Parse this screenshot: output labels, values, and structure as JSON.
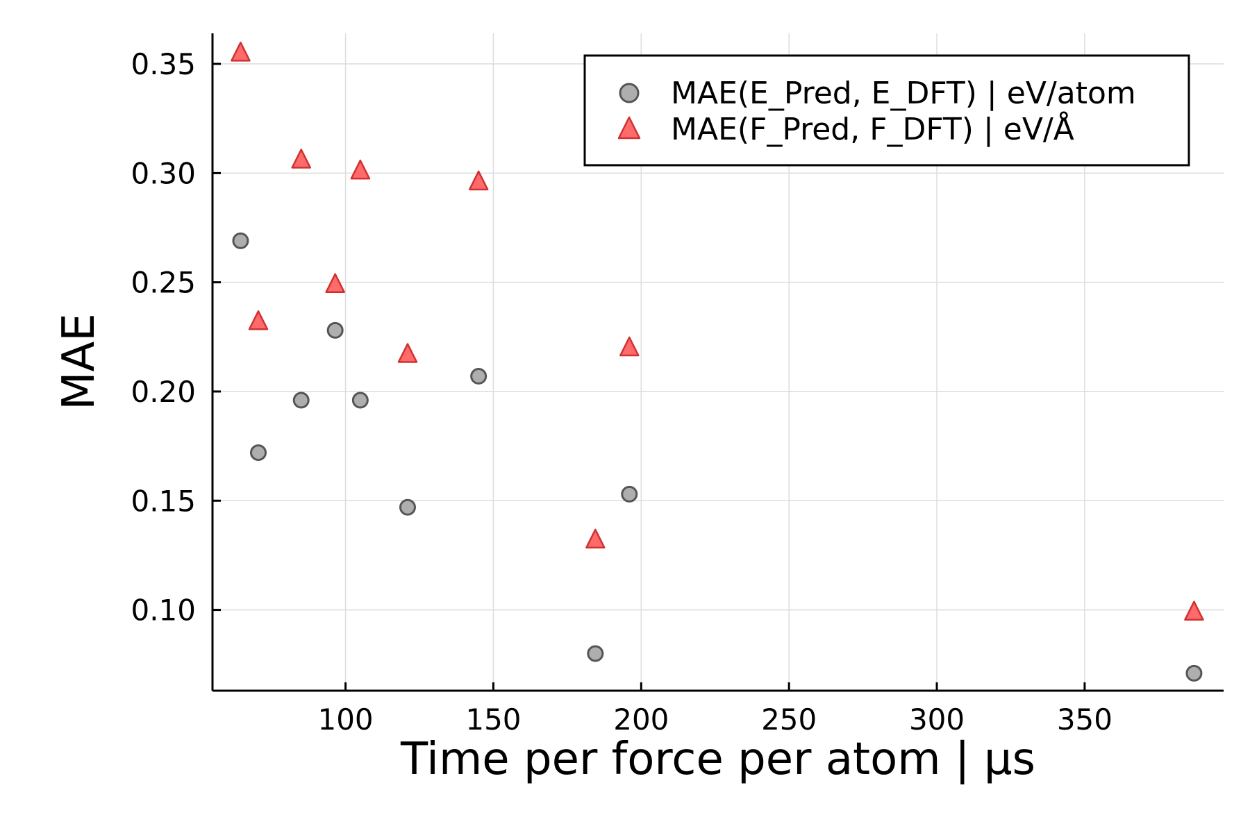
{
  "chart_data": {
    "type": "scatter",
    "xlabel": "Time per force per atom | μs",
    "ylabel": "MAE",
    "xlim": [
      55,
      397
    ],
    "ylim": [
      0.063,
      0.364
    ],
    "x_ticks": [
      100,
      150,
      200,
      250,
      300,
      350
    ],
    "x_tick_labels": [
      "100",
      "150",
      "200",
      "250",
      "300",
      "350"
    ],
    "y_ticks": [
      0.1,
      0.15,
      0.2,
      0.25,
      0.3,
      0.35
    ],
    "y_tick_labels": [
      "0.10",
      "0.15",
      "0.20",
      "0.25",
      "0.30",
      "0.35"
    ],
    "grid": true,
    "legend_position": "top-right",
    "series": [
      {
        "name": "MAE(E_Pred, E_DFT) | eV/atom",
        "marker": "circle",
        "color": "#a0a0a0",
        "edge_color": "#555555",
        "points": [
          {
            "x": 64.5,
            "y": 0.269
          },
          {
            "x": 70.5,
            "y": 0.172
          },
          {
            "x": 85,
            "y": 0.196
          },
          {
            "x": 96.5,
            "y": 0.228
          },
          {
            "x": 105,
            "y": 0.196
          },
          {
            "x": 121,
            "y": 0.147
          },
          {
            "x": 145,
            "y": 0.207
          },
          {
            "x": 184.5,
            "y": 0.08
          },
          {
            "x": 196,
            "y": 0.153
          },
          {
            "x": 387,
            "y": 0.071
          }
        ]
      },
      {
        "name": "MAE(F_Pred, F_DFT) | eV/Å",
        "marker": "triangle",
        "color": "#ff5a5a",
        "edge_color": "#d03030",
        "points": [
          {
            "x": 64.5,
            "y": 0.355
          },
          {
            "x": 70.5,
            "y": 0.232
          },
          {
            "x": 85,
            "y": 0.306
          },
          {
            "x": 96.5,
            "y": 0.249
          },
          {
            "x": 105,
            "y": 0.301
          },
          {
            "x": 121,
            "y": 0.217
          },
          {
            "x": 145,
            "y": 0.296
          },
          {
            "x": 184.5,
            "y": 0.132
          },
          {
            "x": 196,
            "y": 0.22
          },
          {
            "x": 387,
            "y": 0.099
          }
        ]
      }
    ]
  }
}
